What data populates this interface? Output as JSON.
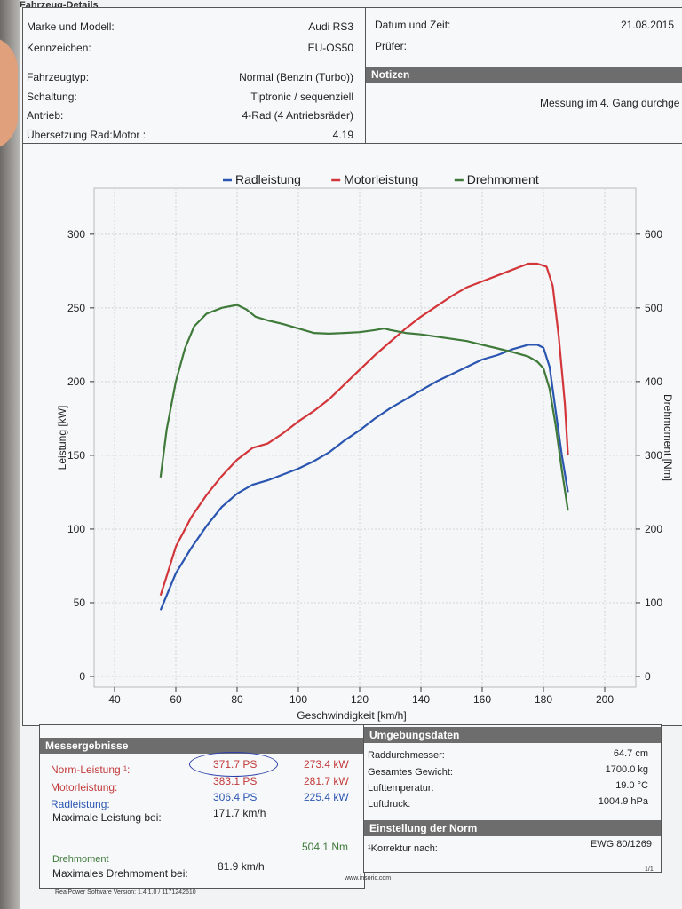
{
  "page": {
    "section_title": "Fahrzeug-Details",
    "software": "RealPower Software Version: 1.4.1.0 / 1171242610",
    "website": "www.insoric.com",
    "page_number": "1/1"
  },
  "vehicle": {
    "rows": [
      {
        "label": "Marke und Modell:",
        "value": "Audi RS3"
      },
      {
        "label": "Kennzeichen:",
        "value": "EU-OS50"
      },
      {
        "label": "Fahrzeugtyp:",
        "value": "Normal (Benzin (Turbo))"
      },
      {
        "label": "Schaltung:",
        "value": "Tiptronic / sequenziell"
      },
      {
        "label": "Antrieb:",
        "value": "4-Rad (4 Antriebsräder)"
      },
      {
        "label": "Übersetzung Rad:Motor :",
        "value": "4.19"
      }
    ],
    "date_label": "Datum und Zeit:",
    "date_value": "21.08.2015",
    "tester_label": "Prüfer:",
    "notes_header": "Notizen",
    "notes_text": "Messung im 4. Gang durchge"
  },
  "chart_data": {
    "type": "line",
    "title": "",
    "xlabel": "Geschwindigkeit [km/h]",
    "ylabel": "Leistung [kW]",
    "y2label": "Drehmoment [Nm]",
    "xlim": [
      40,
      200
    ],
    "ylim": [
      0,
      330
    ],
    "y2lim": [
      0,
      660
    ],
    "x_ticks": [
      "40",
      "60",
      "80",
      "100",
      "120",
      "140",
      "160",
      "180",
      "200"
    ],
    "y_ticks": [
      "0",
      "50",
      "100",
      "150",
      "200",
      "250",
      "300"
    ],
    "y2_ticks": [
      "0",
      "100",
      "200",
      "300",
      "400",
      "500",
      "600"
    ],
    "grid": true,
    "legend_position": "top",
    "series": [
      {
        "name": "Radleistung",
        "color": "#2a55b0",
        "axis": "left",
        "x": [
          55,
          57,
          60,
          65,
          70,
          75,
          80,
          85,
          90,
          95,
          100,
          105,
          110,
          115,
          120,
          125,
          130,
          135,
          140,
          145,
          150,
          155,
          160,
          165,
          170,
          175,
          178,
          180,
          182,
          184,
          186,
          188
        ],
        "values": [
          45,
          55,
          70,
          87,
          102,
          115,
          124,
          130,
          133,
          137,
          141,
          146,
          152,
          160,
          167,
          175,
          182,
          188,
          194,
          200,
          205,
          210,
          215,
          218,
          222,
          225,
          225,
          223,
          210,
          180,
          150,
          125
        ]
      },
      {
        "name": "Motorleistung",
        "color": "#d2363a",
        "axis": "left",
        "x": [
          55,
          57,
          60,
          65,
          70,
          75,
          80,
          85,
          90,
          95,
          100,
          105,
          110,
          115,
          120,
          125,
          130,
          135,
          140,
          145,
          150,
          155,
          160,
          165,
          170,
          175,
          178,
          181,
          183,
          185,
          187,
          188
        ],
        "values": [
          55,
          68,
          88,
          108,
          123,
          136,
          147,
          155,
          158,
          165,
          173,
          180,
          188,
          198,
          208,
          218,
          227,
          236,
          244,
          251,
          258,
          264,
          268,
          272,
          276,
          280,
          280,
          278,
          265,
          230,
          185,
          150
        ]
      },
      {
        "name": "Drehmoment",
        "color": "#3f7a3a",
        "axis": "right",
        "x": [
          55,
          57,
          60,
          63,
          66,
          70,
          75,
          80,
          83,
          86,
          90,
          95,
          100,
          105,
          110,
          115,
          120,
          125,
          128,
          130,
          135,
          140,
          145,
          150,
          155,
          160,
          165,
          170,
          175,
          178,
          180,
          182,
          184,
          186,
          188
        ],
        "values": [
          270,
          335,
          400,
          445,
          475,
          492,
          500,
          504,
          498,
          488,
          483,
          478,
          472,
          466,
          465,
          466,
          467,
          470,
          472,
          470,
          466,
          464,
          461,
          458,
          455,
          450,
          445,
          440,
          434,
          427,
          418,
          390,
          340,
          280,
          225
        ]
      }
    ]
  },
  "results": {
    "header": "Messergebnisse",
    "rows": [
      {
        "label": "Norm-Leistung ¹:",
        "ps": "371.7 PS",
        "kw": "273.4 kW",
        "color": "#c23a3a",
        "circled": true
      },
      {
        "label": "Motorleistung:",
        "ps": "383.1 PS",
        "kw": "281.7 kW",
        "color": "#c23a3a"
      },
      {
        "label": "Radleistung:",
        "ps": "306.4 PS",
        "kw": "225.4 kW",
        "color": "#2a55b0"
      }
    ],
    "max_power_label": "Maximale Leistung bei:",
    "max_power_speed": "171.7 km/h",
    "torque_label": "Drehmoment",
    "torque_value": "504.1 Nm",
    "max_torque_label": "Maximales Drehmoment bei:",
    "max_torque_speed": "81.9 km/h"
  },
  "environment": {
    "header": "Umgebungsdaten",
    "rows": [
      {
        "label": "Raddurchmesser:",
        "value": "64.7 cm"
      },
      {
        "label": "Gesamtes Gewicht:",
        "value": "1700.0 kg"
      },
      {
        "label": "Lufttemperatur:",
        "value": "19.0 °C"
      },
      {
        "label": "Luftdruck:",
        "value": "1004.9 hPa"
      }
    ],
    "norm_header": "Einstellung der Norm",
    "norm_label": "¹Korrektur nach:",
    "norm_value": "EWG 80/1269"
  }
}
